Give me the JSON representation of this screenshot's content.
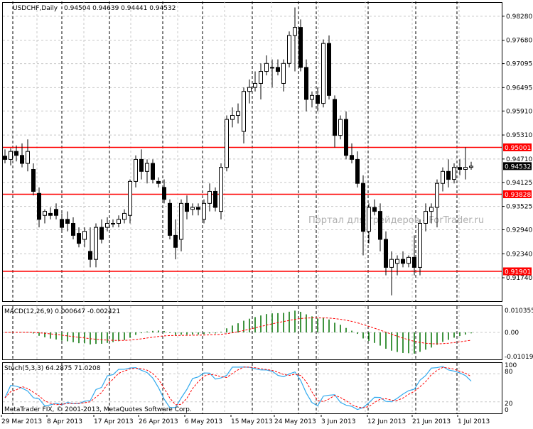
{
  "header": {
    "symbol": "USDCHF,Daily",
    "ohlc": "0.94504 0.94639 0.94441 0.94532"
  },
  "watermark": "Портал для трейдеров - ForTrader.ru",
  "copyright": "MetaTrader FIX, © 2001-2013, MetaQuotes Software Corp.",
  "colors": {
    "hline": "#ff0000",
    "grid": "#c8c8c8",
    "candle_bull": "#ffffff",
    "candle_bear": "#000000",
    "macd_hist": "#007000",
    "signal": "#ff0000",
    "stoch_main": "#33aaee",
    "stoch_signal": "#ff0000"
  },
  "price_axis": {
    "ticks": [
      "0.98280",
      "0.97680",
      "0.97095",
      "0.96495",
      "0.95910",
      "0.95310",
      "0.94710",
      "0.94125",
      "0.93525",
      "0.92940",
      "0.92340",
      "0.91740"
    ],
    "min": 0.91155,
    "max": 0.98615,
    "current_label": "0.94532",
    "current": 0.94532
  },
  "horizontal_lines": [
    {
      "value": 0.95001,
      "label": "0.95001"
    },
    {
      "value": 0.93828,
      "label": "0.93828"
    },
    {
      "value": 0.91901,
      "label": "0.91901"
    }
  ],
  "macd": {
    "label": "MACD(12,26,9) 0.000647 -0.002421",
    "ticks": [
      "0.010355",
      "0.00",
      "-0.010197"
    ],
    "min": -0.0118,
    "max": 0.0118
  },
  "stoch": {
    "label": "Stoch(5,3,3) 64.2875 71.0208",
    "ticks": [
      "100",
      "80",
      "20",
      "0"
    ]
  },
  "time_axis": [
    "29 Mar 2013",
    "8 Apr 2013",
    "17 Apr 2013",
    "26 Apr 2013",
    "6 May 2013",
    "15 May 2013",
    "24 May 2013",
    "3 Jun 2013",
    "12 Jun 2013",
    "21 Jun 2013",
    "1 Jul 2013"
  ],
  "candles": [
    [
      0.9478,
      0.9495,
      0.946,
      0.947
    ],
    [
      0.947,
      0.9498,
      0.9455,
      0.949
    ],
    [
      0.949,
      0.9505,
      0.9465,
      0.948
    ],
    [
      0.948,
      0.951,
      0.945,
      0.946
    ],
    [
      0.946,
      0.952,
      0.944,
      0.949
    ],
    [
      0.9445,
      0.946,
      0.938,
      0.939
    ],
    [
      0.9385,
      0.94,
      0.93,
      0.932
    ],
    [
      0.933,
      0.9345,
      0.931,
      0.934
    ],
    [
      0.9335,
      0.935,
      0.932,
      0.933
    ],
    [
      0.9345,
      0.936,
      0.932,
      0.933
    ],
    [
      0.932,
      0.9335,
      0.929,
      0.93
    ],
    [
      0.932,
      0.934,
      0.929,
      0.931
    ],
    [
      0.931,
      0.9325,
      0.927,
      0.928
    ],
    [
      0.9285,
      0.93,
      0.925,
      0.926
    ],
    [
      0.927,
      0.93,
      0.925,
      0.929
    ],
    [
      0.924,
      0.93,
      0.92,
      0.922
    ],
    [
      0.922,
      0.931,
      0.92,
      0.93
    ],
    [
      0.93,
      0.932,
      0.926,
      0.927
    ],
    [
      0.93,
      0.9325,
      0.929,
      0.931
    ],
    [
      0.931,
      0.932,
      0.93,
      0.931
    ],
    [
      0.931,
      0.933,
      0.93,
      0.932
    ],
    [
      0.932,
      0.9345,
      0.931,
      0.9335
    ],
    [
      0.933,
      0.942,
      0.931,
      0.9415
    ],
    [
      0.9415,
      0.948,
      0.94,
      0.947
    ],
    [
      0.947,
      0.9495,
      0.942,
      0.944
    ],
    [
      0.944,
      0.947,
      0.941,
      0.946
    ],
    [
      0.946,
      0.947,
      0.941,
      0.942
    ],
    [
      0.9415,
      0.9425,
      0.94,
      0.941
    ],
    [
      0.94,
      0.942,
      0.936,
      0.937
    ],
    [
      0.936,
      0.937,
      0.927,
      0.928
    ],
    [
      0.928,
      0.932,
      0.922,
      0.925
    ],
    [
      0.927,
      0.937,
      0.924,
      0.936
    ],
    [
      0.936,
      0.938,
      0.932,
      0.934
    ],
    [
      0.9345,
      0.936,
      0.933,
      0.935
    ],
    [
      0.935,
      0.936,
      0.933,
      0.9345
    ],
    [
      0.932,
      0.937,
      0.931,
      0.936
    ],
    [
      0.936,
      0.941,
      0.934,
      0.939
    ],
    [
      0.939,
      0.94,
      0.934,
      0.935
    ],
    [
      0.934,
      0.946,
      0.932,
      0.945
    ],
    [
      0.945,
      0.958,
      0.944,
      0.957
    ],
    [
      0.957,
      0.96,
      0.955,
      0.958
    ],
    [
      0.958,
      0.961,
      0.956,
      0.959
    ],
    [
      0.954,
      0.965,
      0.951,
      0.964
    ],
    [
      0.964,
      0.967,
      0.961,
      0.965
    ],
    [
      0.965,
      0.969,
      0.964,
      0.966
    ],
    [
      0.966,
      0.971,
      0.962,
      0.969
    ],
    [
      0.969,
      0.973,
      0.968,
      0.971
    ],
    [
      0.97,
      0.972,
      0.965,
      0.97
    ],
    [
      0.97,
      0.972,
      0.968,
      0.969
    ],
    [
      0.966,
      0.972,
      0.964,
      0.971
    ],
    [
      0.971,
      0.979,
      0.97,
      0.978
    ],
    [
      0.978,
      0.985,
      0.969,
      0.98
    ],
    [
      0.98,
      0.982,
      0.969,
      0.97
    ],
    [
      0.97,
      0.972,
      0.959,
      0.962
    ],
    [
      0.962,
      0.964,
      0.96,
      0.963
    ],
    [
      0.963,
      0.965,
      0.959,
      0.961
    ],
    [
      0.961,
      0.977,
      0.96,
      0.976
    ],
    [
      0.976,
      0.978,
      0.962,
      0.963
    ],
    [
      0.962,
      0.963,
      0.95,
      0.953
    ],
    [
      0.953,
      0.958,
      0.952,
      0.957
    ],
    [
      0.957,
      0.959,
      0.947,
      0.948
    ],
    [
      0.948,
      0.951,
      0.946,
      0.947
    ],
    [
      0.947,
      0.949,
      0.94,
      0.941
    ],
    [
      0.941,
      0.943,
      0.923,
      0.929
    ],
    [
      0.929,
      0.936,
      0.926,
      0.935
    ],
    [
      0.935,
      0.937,
      0.933,
      0.934
    ],
    [
      0.934,
      0.936,
      0.924,
      0.927
    ],
    [
      0.927,
      0.929,
      0.918,
      0.92
    ],
    [
      0.92,
      0.924,
      0.913,
      0.922
    ],
    [
      0.921,
      0.923,
      0.918,
      0.922
    ],
    [
      0.922,
      0.924,
      0.92,
      0.921
    ],
    [
      0.921,
      0.923,
      0.92,
      0.9225
    ],
    [
      0.9225,
      0.928,
      0.918,
      0.92
    ],
    [
      0.92,
      0.932,
      0.918,
      0.931
    ],
    [
      0.931,
      0.936,
      0.929,
      0.934
    ],
    [
      0.934,
      0.936,
      0.931,
      0.935
    ],
    [
      0.935,
      0.942,
      0.93,
      0.941
    ],
    [
      0.941,
      0.945,
      0.939,
      0.944
    ],
    [
      0.944,
      0.947,
      0.94,
      0.942
    ],
    [
      0.942,
      0.946,
      0.941,
      0.945
    ],
    [
      0.945,
      0.947,
      0.943,
      0.9445
    ],
    [
      0.9445,
      0.95,
      0.942,
      0.945
    ],
    [
      0.945,
      0.9464,
      0.9444,
      0.9453
    ]
  ]
}
